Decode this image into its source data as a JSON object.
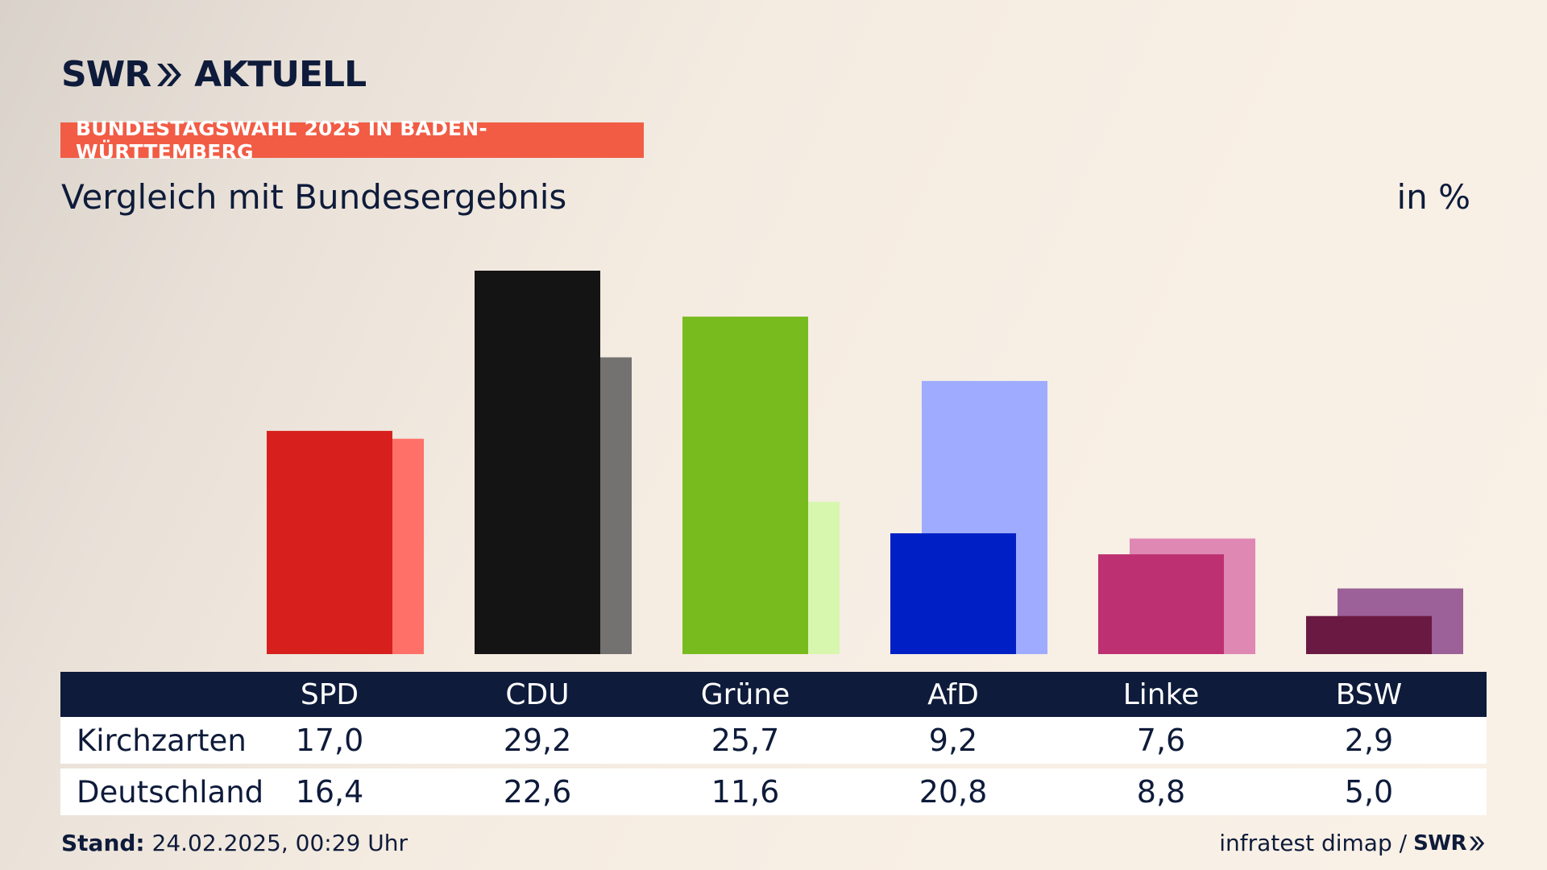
{
  "header": {
    "logo_left": "SWR",
    "logo_right": "AKTUELL",
    "topic": "BUNDESTAGSWAHL 2025 IN BADEN-WÜRTTEMBERG",
    "subtitle": "Vergleich mit Bundesergebnis",
    "unit": "in %"
  },
  "chart_data": {
    "type": "bar",
    "title": "Vergleich mit Bundesergebnis",
    "ylabel": "in %",
    "categories": [
      "SPD",
      "CDU",
      "Grüne",
      "AfD",
      "Linke",
      "BSW"
    ],
    "series": [
      {
        "name": "Kirchzarten",
        "values": [
          17.0,
          29.2,
          25.7,
          9.2,
          7.6,
          2.9
        ],
        "labels": [
          "17,0",
          "29,2",
          "25,7",
          "9,2",
          "7,6",
          "2,9"
        ],
        "colors": [
          "#d7201e",
          "#141414",
          "#78bb1e",
          "#0020c6",
          "#bd3172",
          "#6a1a42"
        ]
      },
      {
        "name": "Deutschland",
        "values": [
          16.4,
          22.6,
          11.6,
          20.8,
          8.8,
          5.0
        ],
        "labels": [
          "16,4",
          "22,6",
          "11,6",
          "20,8",
          "8,8",
          "5,0"
        ],
        "colors": [
          "#ff7068",
          "#737271",
          "#d8f7ae",
          "#9eabff",
          "#de88b3",
          "#9b6198"
        ]
      }
    ],
    "ylim": [
      0,
      29.2
    ]
  },
  "table": {
    "rows": [
      {
        "label": "Kirchzarten"
      },
      {
        "label": "Deutschland"
      }
    ]
  },
  "footer": {
    "stand_label": "Stand:",
    "stand_value": "24.02.2025, 00:29 Uhr",
    "source": "infratest dimap /",
    "source_logo": "SWR"
  }
}
